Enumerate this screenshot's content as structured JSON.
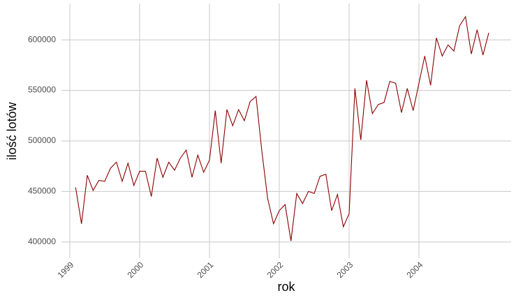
{
  "chart_data": {
    "type": "line",
    "xlabel": "rok",
    "ylabel": "ilość lotów",
    "x": [
      1999.083,
      1999.167,
      1999.25,
      1999.333,
      1999.417,
      1999.5,
      1999.583,
      1999.667,
      1999.75,
      1999.833,
      1999.917,
      2000,
      2000.083,
      2000.167,
      2000.25,
      2000.333,
      2000.417,
      2000.5,
      2000.583,
      2000.667,
      2000.75,
      2000.833,
      2000.917,
      2001,
      2001.083,
      2001.167,
      2001.25,
      2001.333,
      2001.417,
      2001.5,
      2001.583,
      2001.667,
      2001.75,
      2001.833,
      2001.917,
      2002,
      2002.083,
      2002.167,
      2002.25,
      2002.333,
      2002.417,
      2002.5,
      2002.583,
      2002.667,
      2002.75,
      2002.833,
      2002.917,
      2003,
      2003.083,
      2003.167,
      2003.25,
      2003.333,
      2003.417,
      2003.5,
      2003.583,
      2003.667,
      2003.75,
      2003.833,
      2003.917,
      2004,
      2004.083,
      2004.167,
      2004.25,
      2004.333,
      2004.417,
      2004.5,
      2004.583,
      2004.667,
      2004.75,
      2004.833,
      2004.917,
      2005
    ],
    "series": [
      {
        "color": "#8b0000",
        "values": [
          454000,
          418000,
          466000,
          451000,
          461000,
          460000,
          473000,
          479000,
          460000,
          478000,
          456000,
          470000,
          470000,
          445000,
          483000,
          464000,
          479000,
          471000,
          483000,
          491000,
          464000,
          486000,
          469000,
          481000,
          530000,
          478000,
          531000,
          515000,
          531000,
          520000,
          539000,
          544000,
          490000,
          443000,
          418000,
          431000,
          437000,
          401000,
          448000,
          438000,
          450000,
          448000,
          465000,
          467000,
          431000,
          447000,
          415000,
          428000,
          552000,
          501000,
          560000,
          527000,
          536000,
          538000,
          559000,
          557000,
          528000,
          552000,
          530000,
          557000,
          584000,
          555000,
          602000,
          584000,
          595000,
          589000,
          614000,
          623000,
          586000,
          610000,
          585000,
          607000
        ]
      }
    ],
    "xlim": [
      1998.88,
      2005.32
    ],
    "xticks": [
      1999,
      2000,
      2001,
      2002,
      2003,
      2004
    ],
    "ylim": [
      384000,
      636000
    ],
    "yticks": [
      400000,
      450000,
      500000,
      550000,
      600000
    ],
    "grid": true
  }
}
